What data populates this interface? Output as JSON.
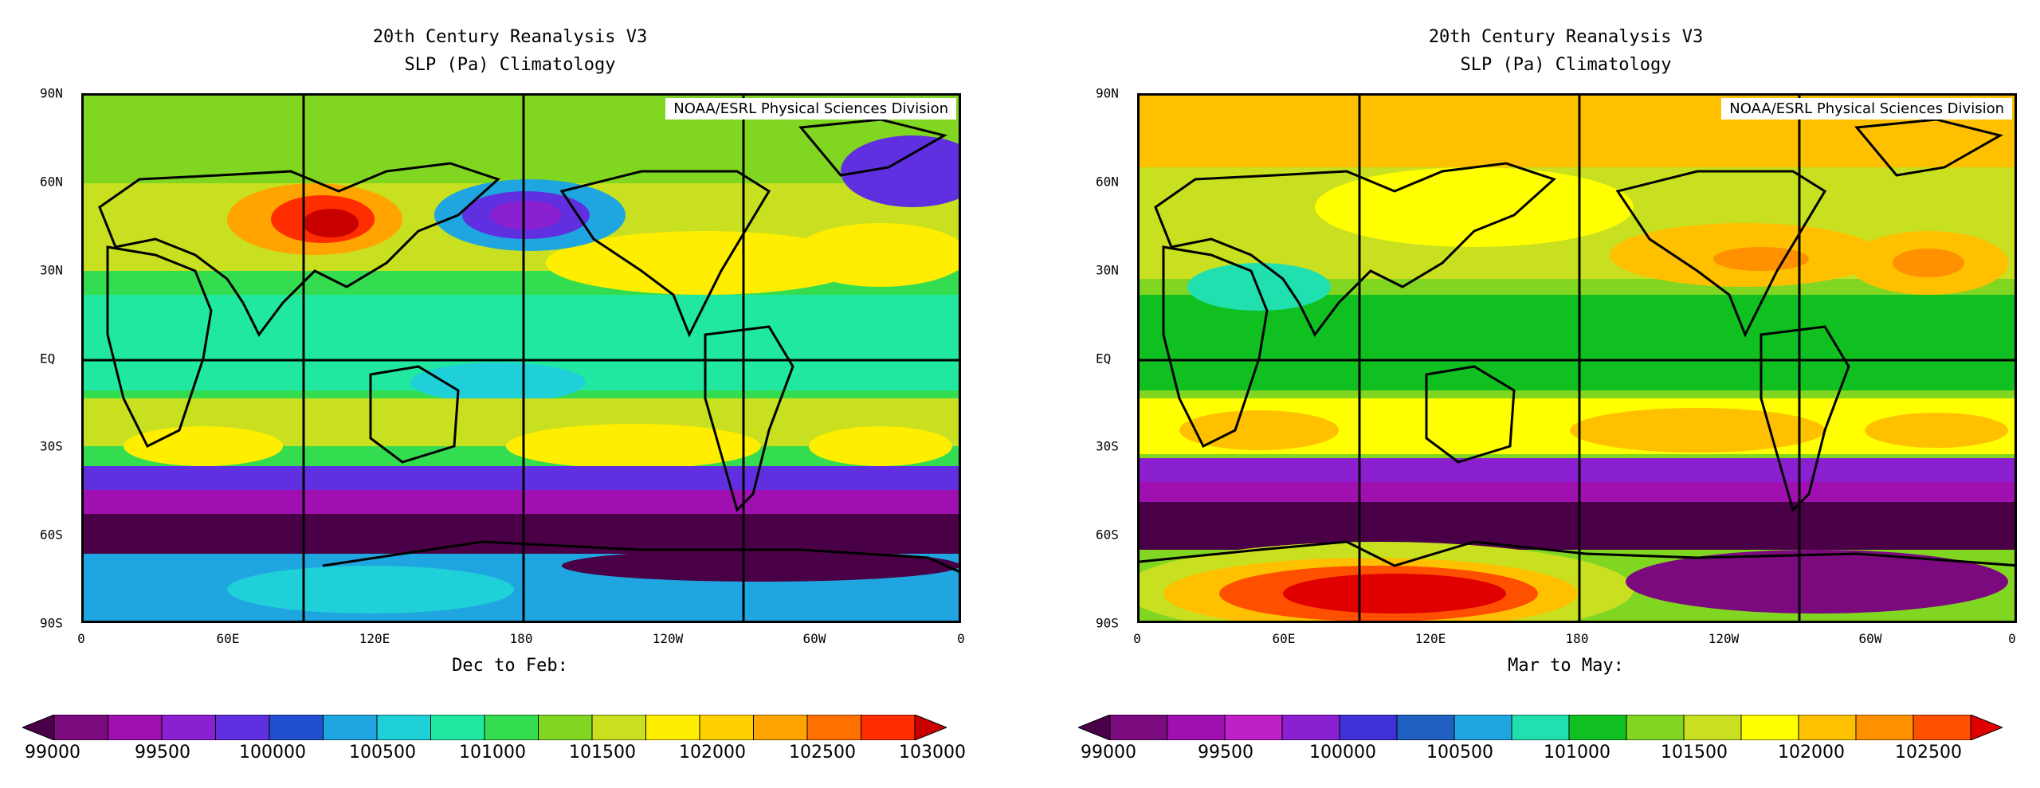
{
  "maps": [
    {
      "title_line1": "20th Century Reanalysis V3",
      "title_line2": "SLP (Pa) Climatology",
      "credit": "NOAA/ESRL Physical Sciences Division",
      "season": "Dec to Feb:",
      "lat_labels": [
        "90N",
        "60N",
        "30N",
        "EQ",
        "30S",
        "60S",
        "90S"
      ],
      "lon_labels": [
        "0",
        "60E",
        "120E",
        "180",
        "120W",
        "60W",
        "0"
      ],
      "colorbar_labels": [
        "99000",
        "99500",
        "100000",
        "100500",
        "101000",
        "101500",
        "102000",
        "102500",
        "103000"
      ],
      "colorbar_colors": [
        "#4a0046",
        "#7a0a7e",
        "#a010b0",
        "#8a20d0",
        "#6030e0",
        "#2050d0",
        "#1fa5e0",
        "#20d0d8",
        "#20e8a0",
        "#34dc50",
        "#80d620",
        "#c8e020",
        "#ffee00",
        "#ffd000",
        "#ffa400",
        "#ff7000",
        "#ff2d00",
        "#c80000"
      ]
    },
    {
      "title_line1": "20th Century Reanalysis V3",
      "title_line2": "SLP (Pa) Climatology",
      "credit": "NOAA/ESRL Physical Sciences Division",
      "season": "Mar to May:",
      "lat_labels": [
        "90N",
        "60N",
        "30N",
        "EQ",
        "30S",
        "60S",
        "90S"
      ],
      "lon_labels": [
        "0",
        "60E",
        "120E",
        "180",
        "120W",
        "60W",
        "0"
      ],
      "colorbar_labels": [
        "99000",
        "99500",
        "100000",
        "100500",
        "101000",
        "101500",
        "102000",
        "102500"
      ],
      "colorbar_colors": [
        "#4a0046",
        "#7a0a7e",
        "#a010b0",
        "#c020c8",
        "#8a20d0",
        "#4030d8",
        "#2060c0",
        "#1fa5e0",
        "#20e0b0",
        "#10c020",
        "#80d620",
        "#c8e020",
        "#ffff00",
        "#ffc000",
        "#ff9000",
        "#ff5000",
        "#e00000"
      ]
    }
  ]
}
